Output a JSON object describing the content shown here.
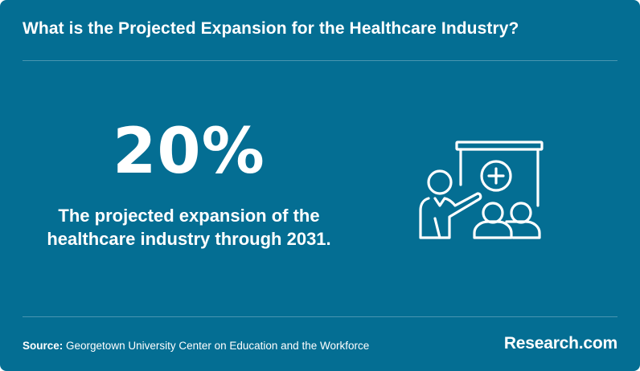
{
  "header": {
    "title": "What is the Projected Expansion for the Healthcare Industry?"
  },
  "stat": {
    "value": "20%",
    "description_line1": "The projected expansion of the",
    "description_line2": "healthcare industry through 2031."
  },
  "illustration": {
    "icon": "presentation-healthcare-icon"
  },
  "footer": {
    "source_label": "Source:",
    "source_text": "Georgetown University Center on Education and the Workforce",
    "brand": "Research.com"
  },
  "colors": {
    "background": "#046e93",
    "text": "#ffffff",
    "rule": "rgba(255,255,255,0.28)"
  }
}
